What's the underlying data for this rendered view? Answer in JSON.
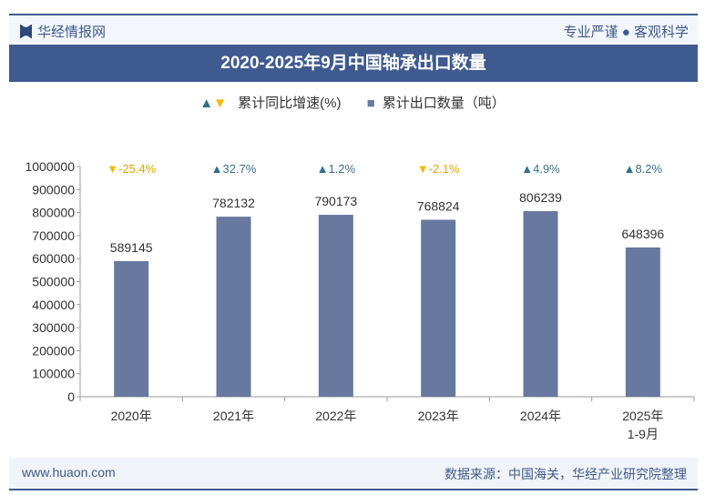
{
  "header": {
    "brand": "华经情报网",
    "slogan": "专业严谨 ● 客观科学"
  },
  "footer": {
    "website": "www.huaon.com",
    "source": "数据来源：中国海关，华经产业研究院整理"
  },
  "watermark": "华经产业研究院 www.huaon.com",
  "colors": {
    "bar": "#67799f",
    "up": "#2f6d8f",
    "down": "#f5b800",
    "title_bg": "#3f5a8f"
  },
  "chart_data": {
    "type": "bar",
    "title": "2020-2025年9月中国轴承出口数量",
    "legend": {
      "growth": "累计同比增速(%)",
      "quantity": "累计出口数量（吨）",
      "placement": "top"
    },
    "categories": [
      "2020年",
      "2021年",
      "2022年",
      "2023年",
      "2024年",
      "2025年\n1-9月"
    ],
    "series": [
      {
        "name": "累计出口数量（吨）",
        "values": [
          589145,
          782132,
          790173,
          768824,
          806239,
          648396
        ]
      },
      {
        "name": "累计同比增速(%)",
        "values": [
          -25.4,
          32.7,
          1.2,
          -2.1,
          4.9,
          8.2
        ]
      }
    ],
    "growth_labels": [
      "-25.4%",
      "32.7%",
      "1.2%",
      "-2.1%",
      "4.9%",
      "8.2%"
    ],
    "ylim": [
      0,
      1000000
    ],
    "yticks": [
      0,
      100000,
      200000,
      300000,
      400000,
      500000,
      600000,
      700000,
      800000,
      900000,
      1000000
    ],
    "grid": false
  }
}
